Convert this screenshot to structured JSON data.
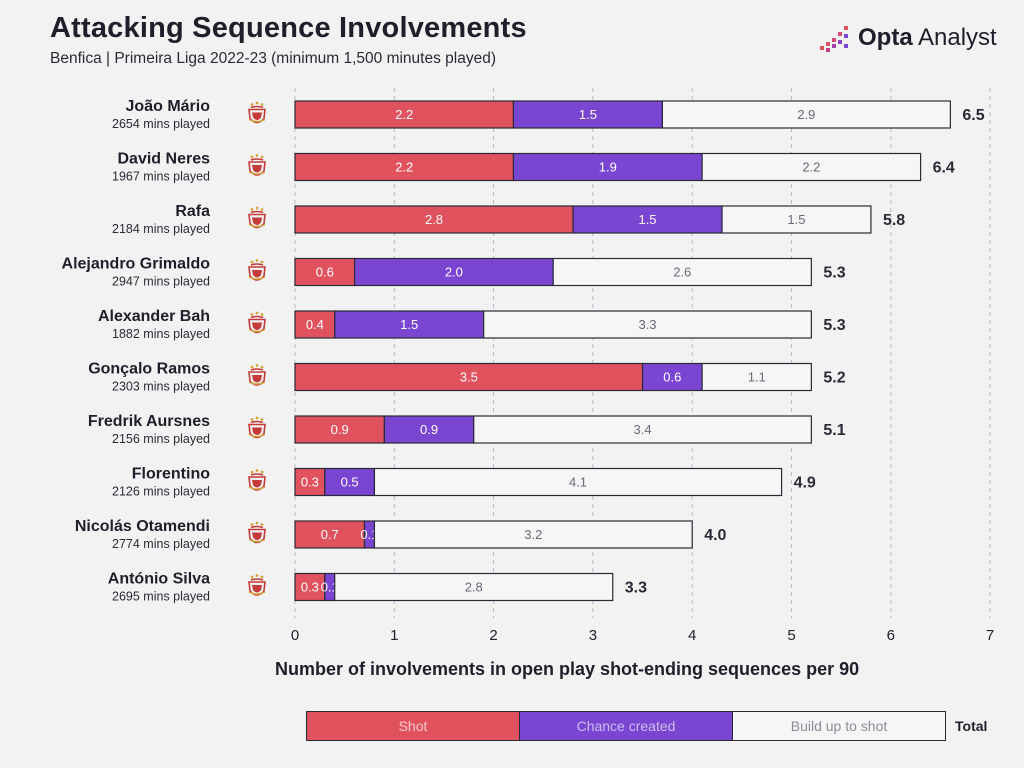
{
  "header": {
    "title": "Attacking Sequence Involvements",
    "subtitle": "Benfica | Primeira Liga 2022-23 (minimum 1,500 minutes played)"
  },
  "brand": {
    "logo_strong": "Opta",
    "logo_light": " Analyst"
  },
  "colors": {
    "shot": "#e0525e",
    "chance": "#7a45d1",
    "build": "#f7f6f7",
    "outline": "#2a2a36"
  },
  "chart_data": {
    "type": "bar",
    "orientation": "horizontal",
    "stacked": true,
    "xlabel": "Number of involvements in open play shot-ending sequences per 90",
    "xlim": [
      0,
      7
    ],
    "xticks": [
      0,
      1,
      2,
      3,
      4,
      5,
      6,
      7
    ],
    "grid": "vertical dashed",
    "series_names": [
      "Shot",
      "Chance created",
      "Build up to shot"
    ],
    "legend_total_label": "Total",
    "players": [
      {
        "name": "João Mário",
        "mins": "2654 mins played",
        "values": [
          2.2,
          1.5,
          2.9
        ],
        "labels": [
          "2.2",
          "1.5",
          "2.9"
        ],
        "total": "6.5"
      },
      {
        "name": "David Neres",
        "mins": "1967 mins played",
        "values": [
          2.2,
          1.9,
          2.2
        ],
        "labels": [
          "2.2",
          "1.9",
          "2.2"
        ],
        "total": "6.4"
      },
      {
        "name": "Rafa",
        "mins": "2184 mins played",
        "values": [
          2.8,
          1.5,
          1.5
        ],
        "labels": [
          "2.8",
          "1.5",
          "1.5"
        ],
        "total": "5.8"
      },
      {
        "name": "Alejandro Grimaldo",
        "mins": "2947 mins played",
        "values": [
          0.6,
          2.0,
          2.6
        ],
        "labels": [
          "0.6",
          "2.0",
          "2.6"
        ],
        "total": "5.3"
      },
      {
        "name": "Alexander Bah",
        "mins": "1882 mins played",
        "values": [
          0.4,
          1.5,
          3.3
        ],
        "labels": [
          "0.4",
          "1.5",
          "3.3"
        ],
        "total": "5.3"
      },
      {
        "name": "Gonçalo Ramos",
        "mins": "2303 mins played",
        "values": [
          3.5,
          0.6,
          1.1
        ],
        "labels": [
          "3.5",
          "0.6",
          "1.1"
        ],
        "total": "5.2"
      },
      {
        "name": "Fredrik Aursnes",
        "mins": "2156 mins played",
        "values": [
          0.9,
          0.9,
          3.4
        ],
        "labels": [
          "0.9",
          "0.9",
          "3.4"
        ],
        "total": "5.1"
      },
      {
        "name": "Florentino",
        "mins": "2126 mins played",
        "values": [
          0.3,
          0.5,
          4.1
        ],
        "labels": [
          "0.3",
          "0.5",
          "4.1"
        ],
        "total": "4.9"
      },
      {
        "name": "Nicolás Otamendi",
        "mins": "2774 mins played",
        "values": [
          0.7,
          0.1,
          3.2
        ],
        "labels": [
          "0.7",
          "0.1",
          "3.2"
        ],
        "total": "4.0"
      },
      {
        "name": "António Silva",
        "mins": "2695 mins played",
        "values": [
          0.3,
          0.1,
          2.8
        ],
        "labels": [
          "0.3",
          "0.1",
          "2.8"
        ],
        "total": "3.3"
      }
    ]
  },
  "icons": {
    "club_crest": "benfica-crest-icon"
  }
}
